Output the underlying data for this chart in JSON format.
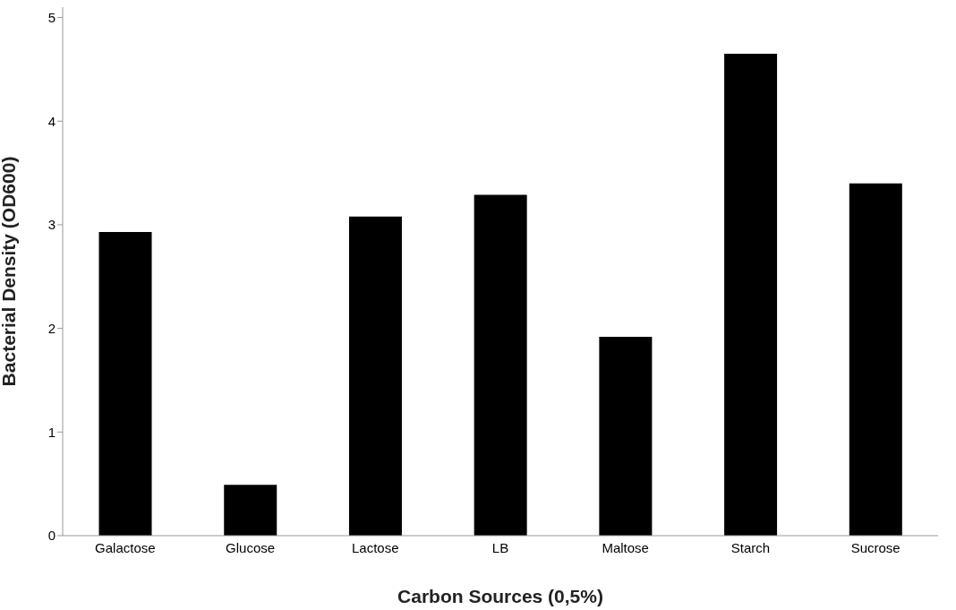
{
  "chart_data": {
    "type": "bar",
    "xlabel": "Carbon Sources (0,5%)",
    "ylabel": "Bacterial Density (OD600)",
    "categories": [
      "Galactose",
      "Glucose",
      "Lactose",
      "LB",
      "Maltose",
      "Starch",
      "Sucrose"
    ],
    "values": [
      2.93,
      0.49,
      3.08,
      3.29,
      1.92,
      4.65,
      3.4
    ],
    "color": "#000000",
    "ylim": [
      0,
      5.1
    ],
    "yticks": [
      0,
      1,
      2,
      3,
      4,
      5
    ],
    "grid": false,
    "legend": false
  }
}
